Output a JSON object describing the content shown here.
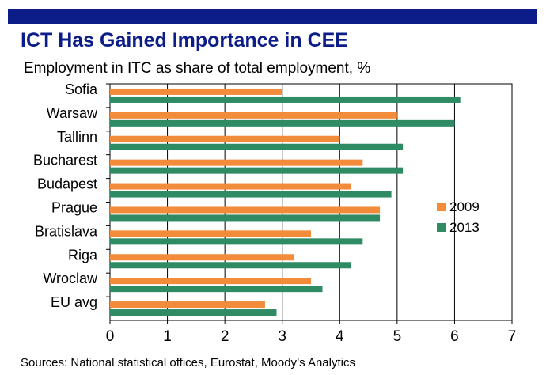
{
  "header": {
    "title": "ICT Has Gained Importance in CEE",
    "subtitle": "Employment in ITC as share of total employment, %"
  },
  "footer": {
    "source": "Sources: National statistical offices, Eurostat, Moody’s Analytics"
  },
  "colors": {
    "brand_bar": "#0c1d8a",
    "series_2009": "#f28c3a",
    "series_2013": "#2e8b63"
  },
  "chart_data": {
    "type": "bar",
    "orientation": "horizontal",
    "title": "",
    "xlabel": "",
    "ylabel": "",
    "categories": [
      "Sofia",
      "Warsaw",
      "Tallinn",
      "Bucharest",
      "Budapest",
      "Prague",
      "Bratislava",
      "Riga",
      "Wroclaw",
      "EU avg"
    ],
    "series": [
      {
        "name": "2009",
        "color": "#f28c3a",
        "values": [
          3.0,
          5.0,
          4.0,
          4.4,
          4.2,
          4.7,
          3.5,
          3.2,
          3.5,
          2.7
        ]
      },
      {
        "name": "2013",
        "color": "#2e8b63",
        "values": [
          6.1,
          6.0,
          5.1,
          5.1,
          4.9,
          4.7,
          4.4,
          4.2,
          3.7,
          2.9
        ]
      }
    ],
    "xlim": [
      0,
      7
    ],
    "xticks": [
      0,
      1,
      2,
      3,
      4,
      5,
      6,
      7
    ],
    "grid": "vertical",
    "legend_position": "right"
  }
}
